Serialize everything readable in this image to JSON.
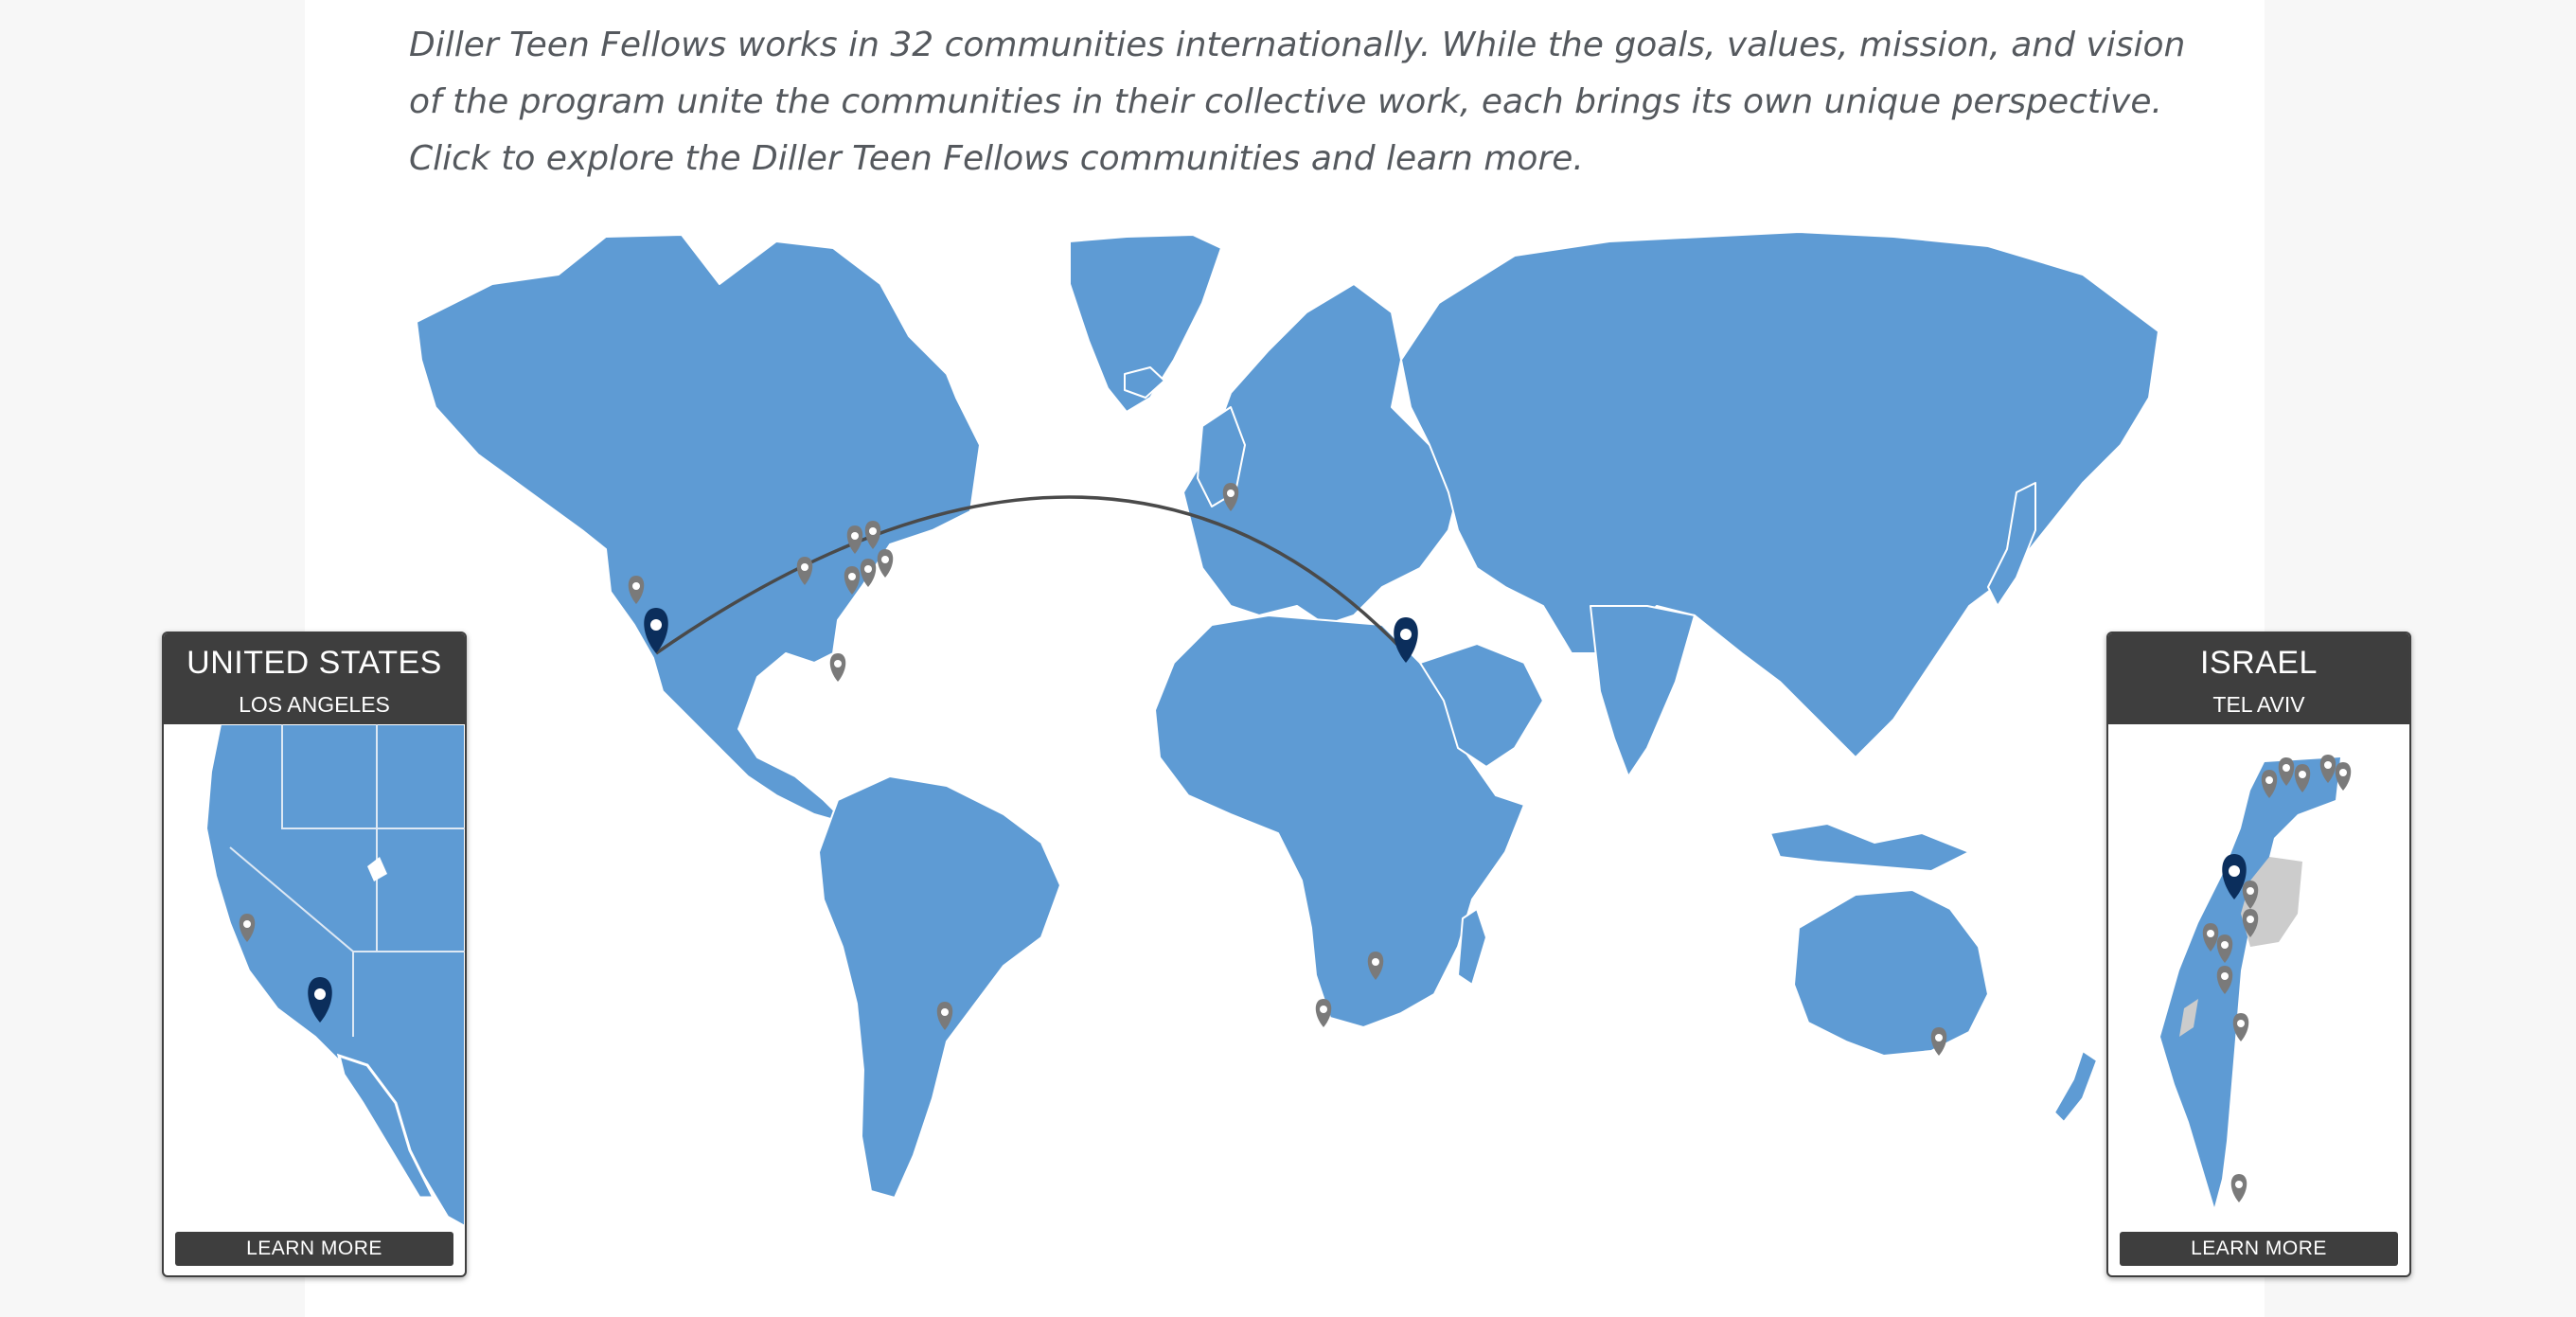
{
  "intro": {
    "text": "Diller Teen Fellows works in 32 communities internationally. While the goals, values, mission, and vision of the program unite the communities in their collective work, each brings its own unique perspective. Click to explore the Diller Teen Fellows communities and learn more."
  },
  "colors": {
    "land": "#5e9bd4",
    "pin_default": "#7a7a7a",
    "pin_selected": "#0b2e5c",
    "card_header": "#3e3e3e",
    "arc": "#4a4a4a"
  },
  "cards": {
    "origin": {
      "country": "UNITED STATES",
      "city": "LOS ANGELES",
      "learn_more": "LEARN MORE"
    },
    "destination": {
      "country": "ISRAEL",
      "city": "TEL AVIV",
      "learn_more": "LEARN MORE"
    }
  },
  "map": {
    "selected_route": [
      "Los Angeles",
      "Tel Aviv"
    ],
    "icons": {
      "pin": "map-pin-icon",
      "selected_pin": "selected-map-pin-icon"
    }
  }
}
